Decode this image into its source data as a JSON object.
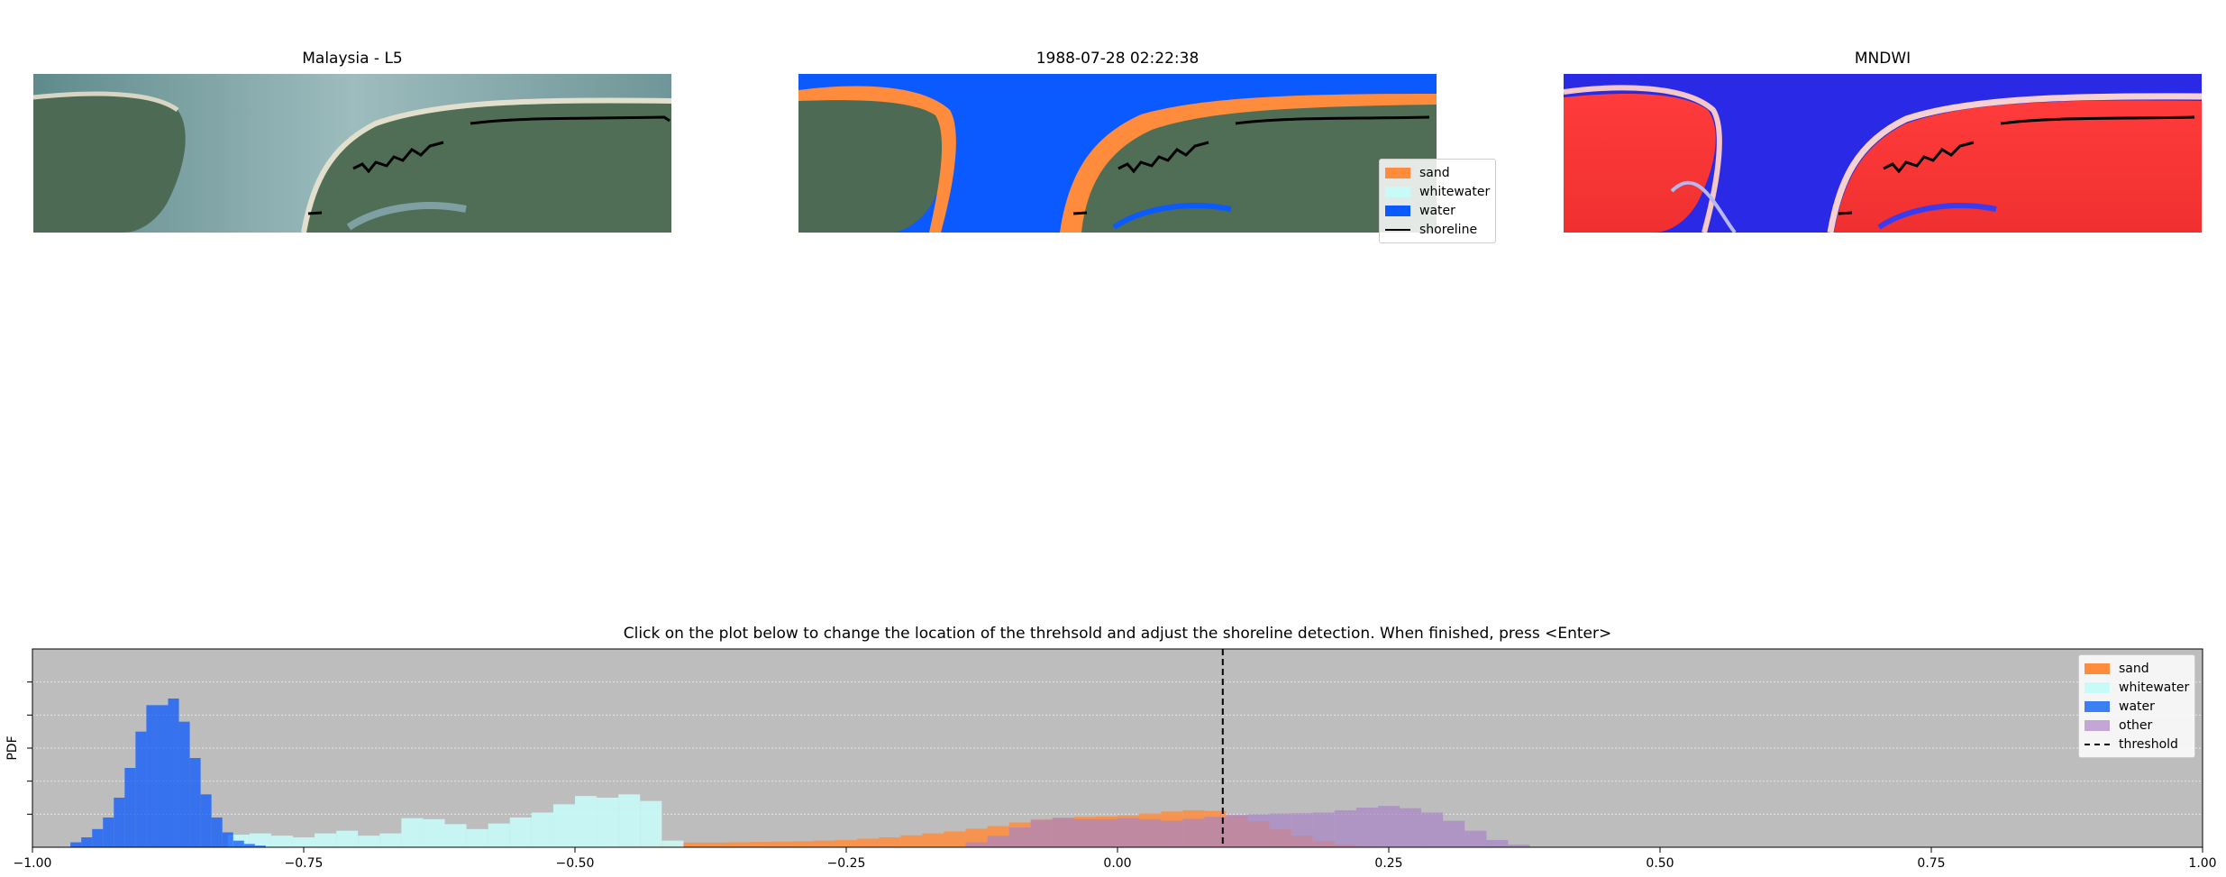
{
  "panels": {
    "rgb": {
      "title": "Malaysia - L5"
    },
    "classified": {
      "title": "1988-07-28  02:22:38"
    },
    "mndwi": {
      "title": "MNDWI"
    }
  },
  "classified_legend": {
    "items": [
      {
        "label": "sand",
        "color": "#ff8c3c"
      },
      {
        "label": "whitewater",
        "color": "#c8fbf8"
      },
      {
        "label": "water",
        "color": "#0a5aff"
      },
      {
        "label": "shoreline",
        "color": "#000000"
      }
    ]
  },
  "histogram": {
    "title": "Click on the plot below to change the location of the threhsold and adjust the shoreline detection. When finished, press <Enter>"
  },
  "chart_data": {
    "type": "bar",
    "title": "Click on the plot below to change the location of the threhsold and adjust the shoreline detection. When finished, press <Enter>",
    "xlabel": "",
    "ylabel": "PDF",
    "xlim": [
      -1.0,
      1.0
    ],
    "ylim": [
      0,
      6
    ],
    "x_ticks": [
      "−1.00",
      "−0.75",
      "−0.50",
      "−0.25",
      "0.00",
      "0.25",
      "0.50",
      "0.75",
      "1.00"
    ],
    "x_tick_values": [
      -1.0,
      -0.75,
      -0.5,
      -0.25,
      0.0,
      0.25,
      0.5,
      0.75,
      1.0
    ],
    "grid": "y",
    "background": "#bdbdbd",
    "legend_position": "top-right",
    "threshold": 0.097,
    "series": [
      {
        "name": "sand",
        "color": "#ff8c3c",
        "alpha": 0.85,
        "bins": [
          [
            -0.45,
            0.06
          ],
          [
            -0.43,
            0.1
          ],
          [
            -0.41,
            0.12
          ],
          [
            -0.39,
            0.14
          ],
          [
            -0.37,
            0.14
          ],
          [
            -0.35,
            0.15
          ],
          [
            -0.33,
            0.16
          ],
          [
            -0.31,
            0.17
          ],
          [
            -0.29,
            0.18
          ],
          [
            -0.27,
            0.2
          ],
          [
            -0.25,
            0.22
          ],
          [
            -0.23,
            0.26
          ],
          [
            -0.21,
            0.3
          ],
          [
            -0.19,
            0.36
          ],
          [
            -0.17,
            0.42
          ],
          [
            -0.15,
            0.48
          ],
          [
            -0.13,
            0.56
          ],
          [
            -0.11,
            0.64
          ],
          [
            -0.09,
            0.75
          ],
          [
            -0.07,
            0.85
          ],
          [
            -0.05,
            0.9
          ],
          [
            -0.03,
            0.92
          ],
          [
            -0.01,
            0.93
          ],
          [
            0.01,
            0.96
          ],
          [
            0.03,
            1.02
          ],
          [
            0.05,
            1.08
          ],
          [
            0.07,
            1.12
          ],
          [
            0.09,
            1.1
          ],
          [
            0.11,
            0.95
          ],
          [
            0.13,
            0.78
          ],
          [
            0.15,
            0.55
          ],
          [
            0.17,
            0.35
          ],
          [
            0.19,
            0.18
          ],
          [
            0.21,
            0.08
          ],
          [
            0.23,
            0.03
          ]
        ]
      },
      {
        "name": "whitewater",
        "color": "#c8fbf8",
        "alpha": 0.9,
        "bins": [
          [
            -0.81,
            0.38
          ],
          [
            -0.79,
            0.42
          ],
          [
            -0.77,
            0.35
          ],
          [
            -0.75,
            0.3
          ],
          [
            -0.73,
            0.42
          ],
          [
            -0.71,
            0.5
          ],
          [
            -0.69,
            0.35
          ],
          [
            -0.67,
            0.42
          ],
          [
            -0.65,
            0.88
          ],
          [
            -0.63,
            0.85
          ],
          [
            -0.61,
            0.7
          ],
          [
            -0.59,
            0.55
          ],
          [
            -0.57,
            0.72
          ],
          [
            -0.55,
            0.9
          ],
          [
            -0.53,
            1.05
          ],
          [
            -0.51,
            1.3
          ],
          [
            -0.49,
            1.55
          ],
          [
            -0.47,
            1.5
          ],
          [
            -0.45,
            1.6
          ],
          [
            -0.43,
            1.4
          ],
          [
            -0.41,
            0.2
          ]
        ]
      },
      {
        "name": "water",
        "color": "#0a5aff",
        "alpha": 0.75,
        "bins": [
          [
            -0.96,
            0.15
          ],
          [
            -0.95,
            0.3
          ],
          [
            -0.94,
            0.55
          ],
          [
            -0.93,
            0.9
          ],
          [
            -0.92,
            1.5
          ],
          [
            -0.91,
            2.4
          ],
          [
            -0.9,
            3.5
          ],
          [
            -0.89,
            4.3
          ],
          [
            -0.88,
            4.3
          ],
          [
            -0.87,
            4.5
          ],
          [
            -0.86,
            3.8
          ],
          [
            -0.85,
            2.7
          ],
          [
            -0.84,
            1.6
          ],
          [
            -0.83,
            0.9
          ],
          [
            -0.82,
            0.45
          ],
          [
            -0.81,
            0.2
          ],
          [
            -0.8,
            0.1
          ],
          [
            -0.79,
            0.05
          ]
        ]
      },
      {
        "name": "other",
        "color": "#a885c6",
        "alpha": 0.7,
        "bins": [
          [
            -0.13,
            0.15
          ],
          [
            -0.11,
            0.35
          ],
          [
            -0.09,
            0.6
          ],
          [
            -0.07,
            0.82
          ],
          [
            -0.05,
            0.88
          ],
          [
            -0.03,
            0.85
          ],
          [
            -0.01,
            0.85
          ],
          [
            0.01,
            0.88
          ],
          [
            0.03,
            0.85
          ],
          [
            0.05,
            0.8
          ],
          [
            0.07,
            0.86
          ],
          [
            0.09,
            0.92
          ],
          [
            0.11,
            0.98
          ],
          [
            0.13,
            1.0
          ],
          [
            0.15,
            1.02
          ],
          [
            0.17,
            1.03
          ],
          [
            0.19,
            1.05
          ],
          [
            0.21,
            1.12
          ],
          [
            0.23,
            1.2
          ],
          [
            0.25,
            1.25
          ],
          [
            0.27,
            1.18
          ],
          [
            0.29,
            1.05
          ],
          [
            0.31,
            0.8
          ],
          [
            0.33,
            0.5
          ],
          [
            0.35,
            0.22
          ],
          [
            0.37,
            0.08
          ]
        ]
      }
    ]
  },
  "hist_legend": {
    "items": [
      {
        "label": "sand",
        "color": "#ff8c3c",
        "kind": "patch"
      },
      {
        "label": "whitewater",
        "color": "#c8fbf8",
        "kind": "patch"
      },
      {
        "label": "water",
        "color": "#3b7ff5",
        "kind": "patch"
      },
      {
        "label": "other",
        "color": "#c3a6d6",
        "kind": "patch"
      },
      {
        "label": "threshold",
        "color": "#000000",
        "kind": "dashed"
      }
    ]
  }
}
